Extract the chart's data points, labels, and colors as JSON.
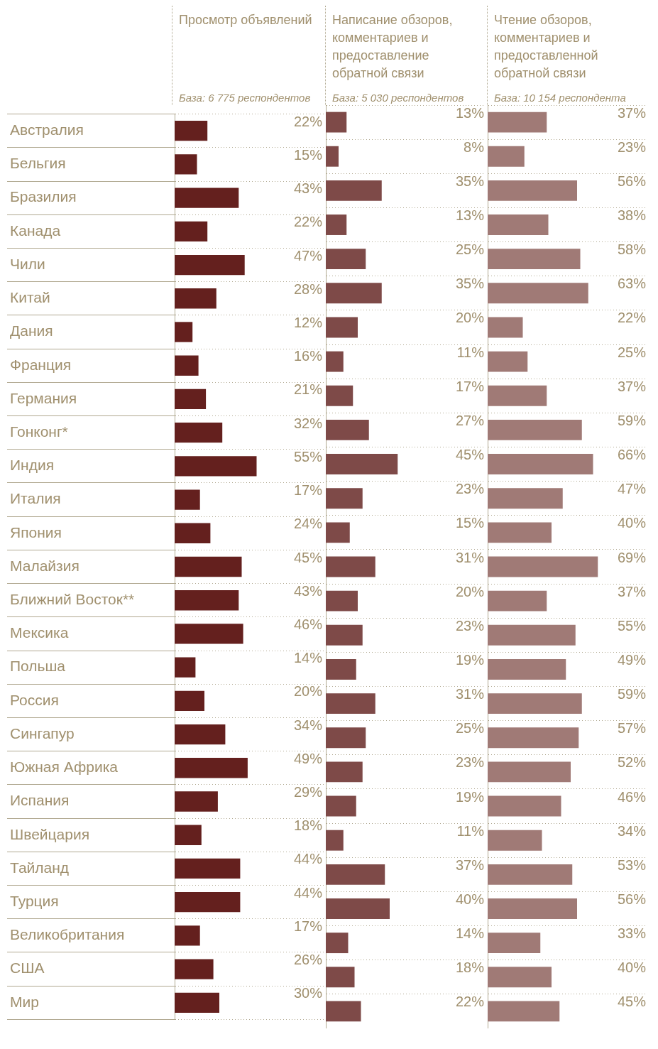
{
  "chart_data": [
    {
      "type": "bar",
      "orientation": "horizontal",
      "title": "Просмотр объявлений",
      "subtitle": "База: 6 775 респондентов",
      "categories": [
        "Австралия",
        "Бельгия",
        "Бразилия",
        "Канада",
        "Чили",
        "Китай",
        "Дания",
        "Франция",
        "Германия",
        "Гонконг*",
        "Индия",
        "Италия",
        "Япония",
        "Малайзия",
        "Ближний Восток**",
        "Мексика",
        "Польша",
        "Россия",
        "Сингапур",
        "Южная Африка",
        "Испания",
        "Швейцария",
        "Тайланд",
        "Турция",
        "Великобритания",
        "США",
        "Мир"
      ],
      "values": [
        22,
        15,
        43,
        22,
        47,
        28,
        12,
        16,
        21,
        32,
        55,
        17,
        24,
        45,
        43,
        46,
        14,
        20,
        34,
        49,
        29,
        18,
        44,
        44,
        17,
        26,
        30
      ],
      "value_labels": [
        "22%",
        "15%",
        "43%",
        "22%",
        "47%",
        "28%",
        "12%",
        "16%",
        "21%",
        "32%",
        "55%",
        "17%",
        "24%",
        "45%",
        "43%",
        "46%",
        "14%",
        "20%",
        "34%",
        "49%",
        "29%",
        "18%",
        "44%",
        "44%",
        "17%",
        "26%",
        "30%"
      ],
      "color": "#64201e",
      "xlim": [
        0,
        100
      ],
      "grid": "y",
      "tick_labels": "y",
      "legend": false
    },
    {
      "type": "bar",
      "orientation": "horizontal",
      "title": "Написание обзоров, комментариев и предоставление обратной связи",
      "subtitle": "База: 5 030 респондентов",
      "categories": [
        null,
        null,
        null,
        null,
        null,
        null,
        null,
        null,
        null,
        null,
        null,
        null,
        null,
        null,
        null,
        null,
        null,
        null,
        null,
        null,
        null,
        null,
        null,
        null,
        null,
        null,
        null
      ],
      "values": [
        13,
        8,
        35,
        13,
        25,
        35,
        20,
        11,
        17,
        27,
        45,
        23,
        15,
        31,
        20,
        23,
        19,
        31,
        25,
        23,
        19,
        11,
        37,
        40,
        14,
        18,
        22
      ],
      "value_labels": [
        "13%",
        "8%",
        "35%",
        "13%",
        "25%",
        "35%",
        "20%",
        "11%",
        "17%",
        "27%",
        "45%",
        "23%",
        "15%",
        "31%",
        "20%",
        "23%",
        "19%",
        "31%",
        "25%",
        "23%",
        "19%",
        "11%",
        "37%",
        "40%",
        "14%",
        "18%",
        "22%"
      ],
      "color": "#7e4a48",
      "xlim": [
        0,
        100
      ],
      "grid": "y",
      "tick_labels": false,
      "legend": false
    },
    {
      "type": "bar",
      "orientation": "horizontal",
      "title": "Чтение обзоров, комментариев и предоставленной обратной связи",
      "subtitle": "База: 10 154 респондента",
      "categories": [
        null,
        null,
        null,
        null,
        null,
        null,
        null,
        null,
        null,
        null,
        null,
        null,
        null,
        null,
        null,
        null,
        null,
        null,
        null,
        null,
        null,
        null,
        null,
        null,
        null,
        null,
        null
      ],
      "values": [
        37,
        23,
        56,
        38,
        58,
        63,
        22,
        25,
        37,
        59,
        66,
        47,
        40,
        69,
        37,
        55,
        49,
        59,
        57,
        52,
        46,
        34,
        53,
        56,
        33,
        40,
        45
      ],
      "value_labels": [
        "37%",
        "23%",
        "56%",
        "38%",
        "58%",
        "63%",
        "22%",
        "25%",
        "37%",
        "59%",
        "66%",
        "47%",
        "40%",
        "69%",
        "37%",
        "55%",
        "49%",
        "59%",
        "57%",
        "52%",
        "46%",
        "34%",
        "53%",
        "56%",
        "33%",
        "40%",
        "45%"
      ],
      "color": "#a07a76",
      "xlim": [
        0,
        100
      ],
      "grid": "y",
      "tick_labels": false,
      "legend": false
    }
  ]
}
